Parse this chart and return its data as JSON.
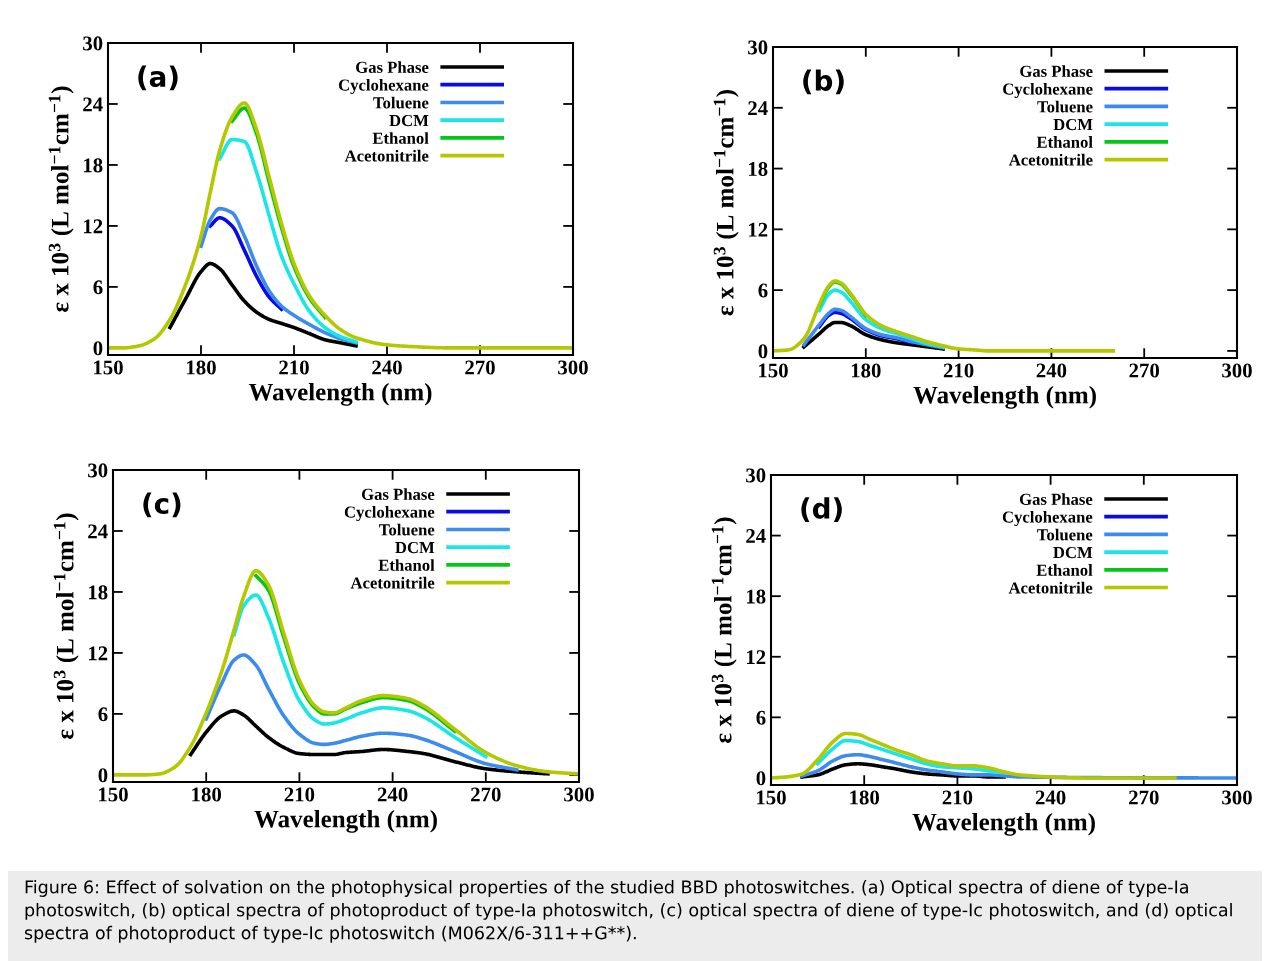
{
  "chart_data": [
    {
      "type": "line",
      "xlabel": "Wavelength (nm)",
      "ylabel": "ε x 10$^{3}$ (L mol$^{−1}$cm$^{−1}$)",
      "annotations": [
        "(a)"
      ],
      "xlim": [
        150,
        300
      ],
      "xticks": [
        150,
        180,
        210,
        240,
        270,
        300
      ],
      "ylim": [
        -0.7,
        30
      ],
      "yticks": [
        0,
        6,
        12,
        18,
        24,
        30
      ],
      "grid": false,
      "legend": "top right",
      "marker": "none",
      "line_style": "solid",
      "x": [
        150,
        155,
        160,
        165,
        170,
        175,
        180,
        183,
        186,
        190,
        194,
        198,
        202,
        206,
        210,
        215,
        220,
        225,
        230,
        240,
        250,
        260,
        300
      ],
      "series": [
        {
          "name": "Gas Phase",
          "color": "#000000",
          "values": [
            null,
            null,
            null,
            null,
            2.0,
            4.8,
            7.5,
            8.3,
            7.8,
            6.2,
            4.6,
            3.5,
            2.8,
            2.4,
            2.0,
            1.4,
            0.8,
            0.5,
            0.2,
            null,
            null,
            null,
            null
          ]
        },
        {
          "name": "Cyclohexane",
          "color": "#0a0ae6",
          "values": [
            null,
            null,
            null,
            null,
            null,
            null,
            null,
            12.0,
            12.8,
            12.0,
            9.6,
            7.0,
            5.0,
            3.8,
            null,
            null,
            null,
            null,
            null,
            null,
            null,
            null,
            null
          ]
        },
        {
          "name": "Toluene",
          "color": "#3c8cf0",
          "values": [
            null,
            null,
            null,
            null,
            null,
            null,
            10.0,
            12.6,
            13.7,
            13.3,
            11.0,
            8.0,
            5.6,
            4.1,
            3.2,
            2.3,
            1.5,
            0.9,
            0.5,
            null,
            null,
            null,
            null
          ]
        },
        {
          "name": "DCM",
          "color": "#19e6e6",
          "values": [
            null,
            null,
            null,
            null,
            null,
            null,
            null,
            null,
            18.6,
            20.5,
            20.3,
            17.2,
            13.0,
            9.0,
            6.3,
            3.6,
            2.0,
            1.1,
            0.6,
            null,
            null,
            null,
            null
          ]
        },
        {
          "name": "Ethanol",
          "color": "#00c814",
          "values": [
            null,
            null,
            null,
            null,
            null,
            null,
            null,
            null,
            null,
            22.3,
            23.6,
            21.0,
            16.3,
            11.8,
            8.0,
            4.9,
            3.0,
            null,
            null,
            null,
            null,
            null,
            null
          ]
        },
        {
          "name": "Acetonitrile",
          "color": "#b4c800",
          "values": [
            0,
            0,
            0.2,
            0.9,
            2.8,
            6.2,
            11.0,
            15.3,
            19.4,
            22.7,
            24.1,
            21.4,
            16.8,
            12.2,
            8.3,
            5.1,
            3.2,
            1.8,
            1.0,
            0.3,
            0.1,
            0,
            0
          ]
        }
      ]
    },
    {
      "type": "line",
      "xlabel": "Wavelength (nm)",
      "ylabel": "ε x 10$^{3}$ (L mol$^{−1}$cm$^{−1}$)",
      "annotations": [
        "(b)"
      ],
      "xlim": [
        150,
        300
      ],
      "xticks": [
        150,
        180,
        210,
        240,
        270,
        300
      ],
      "ylim": [
        -0.7,
        30
      ],
      "yticks": [
        0,
        6,
        12,
        18,
        24,
        30
      ],
      "grid": false,
      "legend": "top right",
      "marker": "none",
      "line_style": "solid",
      "x": [
        150,
        155,
        160,
        165,
        168,
        170,
        172,
        175,
        180,
        185,
        190,
        195,
        200,
        205,
        210,
        215,
        220,
        230,
        240,
        250,
        260
      ],
      "series": [
        {
          "name": "Gas Phase",
          "color": "#000000",
          "values": [
            null,
            null,
            0.4,
            1.7,
            2.5,
            2.8,
            2.8,
            2.5,
            1.6,
            1.1,
            0.8,
            0.6,
            0.4,
            0.2,
            null,
            null,
            null,
            null,
            null,
            null,
            null
          ]
        },
        {
          "name": "Cyclohexane",
          "color": "#0a0ae6",
          "values": [
            null,
            null,
            null,
            2.4,
            3.5,
            3.8,
            3.7,
            3.2,
            2.1,
            1.5,
            1.2,
            0.8,
            null,
            null,
            null,
            null,
            null,
            null,
            null,
            null,
            null
          ]
        },
        {
          "name": "Toluene",
          "color": "#3c8cf0",
          "values": [
            null,
            null,
            0.6,
            2.6,
            3.7,
            4.1,
            4.0,
            3.4,
            2.2,
            1.6,
            1.3,
            0.9,
            0.6,
            0.3,
            null,
            null,
            null,
            null,
            null,
            null,
            null
          ]
        },
        {
          "name": "DCM",
          "color": "#19e6e6",
          "values": [
            null,
            null,
            null,
            4.0,
            5.6,
            6.0,
            5.8,
            4.9,
            3.1,
            2.2,
            1.7,
            1.2,
            0.7,
            0.4,
            null,
            null,
            null,
            null,
            null,
            null,
            null
          ]
        },
        {
          "name": "Ethanol",
          "color": "#00c814",
          "values": [
            null,
            null,
            null,
            4.5,
            6.3,
            6.8,
            6.6,
            5.6,
            3.5,
            null,
            null,
            null,
            null,
            null,
            null,
            null,
            null,
            null,
            null,
            null,
            null
          ]
        },
        {
          "name": "Acetonitrile",
          "color": "#b4c800",
          "values": [
            0,
            0.1,
            1.2,
            4.6,
            6.4,
            6.9,
            6.7,
            5.7,
            3.6,
            2.5,
            1.9,
            1.4,
            0.9,
            0.5,
            0.2,
            0.1,
            0,
            0,
            0,
            0,
            0
          ]
        }
      ]
    },
    {
      "type": "line",
      "xlabel": "Wavelength (nm)",
      "ylabel": "ε x 10$^{3}$ (L mol$^{−1}$cm$^{−1}$)",
      "annotations": [
        "(c)"
      ],
      "xlim": [
        150,
        300
      ],
      "xticks": [
        150,
        180,
        210,
        240,
        270,
        300
      ],
      "ylim": [
        -0.7,
        30
      ],
      "yticks": [
        0,
        6,
        12,
        18,
        24,
        30
      ],
      "grid": false,
      "legend": "top right",
      "marker": "none",
      "line_style": "solid",
      "x": [
        150,
        160,
        165,
        170,
        175,
        180,
        185,
        189,
        192,
        196,
        200,
        205,
        210,
        215,
        218,
        221,
        225,
        230,
        237,
        245,
        250,
        260,
        270,
        280,
        290,
        300
      ],
      "series": [
        {
          "name": "Gas Phase",
          "color": "#000000",
          "values": [
            null,
            null,
            null,
            null,
            2.0,
            4.2,
            5.8,
            6.3,
            5.9,
            4.8,
            3.7,
            2.7,
            2.1,
            2.0,
            2.0,
            2.0,
            2.2,
            2.3,
            2.5,
            2.3,
            2.1,
            1.3,
            0.6,
            0.3,
            0.1,
            null
          ]
        },
        {
          "name": "Cyclohexane",
          "color": "#0a0ae6",
          "values": [
            null,
            null,
            null,
            null,
            null,
            null,
            null,
            null,
            null,
            null,
            null,
            null,
            null,
            null,
            null,
            null,
            null,
            null,
            null,
            null,
            null,
            null,
            null,
            null,
            null,
            null
          ]
        },
        {
          "name": "Toluene",
          "color": "#3c8cf0",
          "values": [
            null,
            null,
            null,
            null,
            null,
            5.5,
            9.0,
            11.3,
            11.8,
            10.8,
            8.5,
            5.8,
            4.0,
            3.1,
            3.0,
            3.1,
            3.4,
            3.8,
            4.1,
            3.9,
            3.5,
            2.3,
            1.1,
            0.5,
            null,
            null
          ]
        },
        {
          "name": "DCM",
          "color": "#19e6e6",
          "values": [
            null,
            null,
            null,
            null,
            null,
            null,
            null,
            13.8,
            16.6,
            17.7,
            15.5,
            11.0,
            7.3,
            5.4,
            5.0,
            5.1,
            5.5,
            6.1,
            6.6,
            6.3,
            5.7,
            3.7,
            1.8,
            null,
            null,
            null
          ]
        },
        {
          "name": "Ethanol",
          "color": "#00c814",
          "values": [
            null,
            null,
            null,
            null,
            null,
            null,
            null,
            null,
            null,
            19.6,
            18.2,
            13.5,
            9.0,
            6.6,
            6.0,
            6.0,
            6.5,
            7.1,
            7.6,
            7.3,
            6.6,
            4.3,
            null,
            null,
            null,
            null
          ]
        },
        {
          "name": "Acetonitrile",
          "color": "#b4c800",
          "values": [
            0,
            0,
            0.1,
            0.8,
            2.8,
            6.1,
            10.2,
            14.3,
            17.5,
            20.1,
            18.7,
            13.9,
            9.3,
            6.8,
            6.2,
            6.1,
            6.6,
            7.3,
            7.8,
            7.5,
            6.8,
            4.5,
            2.2,
            0.9,
            0.3,
            0.1
          ]
        }
      ]
    },
    {
      "type": "line",
      "xlabel": "Wavelength (nm)",
      "ylabel": "ε x 10$^{3}$ (L mol$^{−1}$cm$^{−1}$)",
      "annotations": [
        "(d)",
        "Figure 6: Effect of solvation on the photophysical properties of the studied BBD photoswitches. (a) Optical spectra of diene of type-Ia photoswitch, (b) optical spectra of photoproduct of type-Ia photoswitch, (c) optical spectra of diene of type-Ic photoswitch, and (d) optical spectra of photoproduct of type-Ic photoswitch (M062X/6-311++G**)."
      ],
      "xlim": [
        150,
        300
      ],
      "xticks": [
        150,
        180,
        210,
        240,
        270,
        300
      ],
      "ylim": [
        -0.7,
        30
      ],
      "yticks": [
        0,
        6,
        12,
        18,
        24,
        30
      ],
      "grid": false,
      "legend": "top right",
      "marker": "none",
      "line_style": "solid",
      "x": [
        150,
        155,
        160,
        165,
        170,
        174,
        178,
        182,
        186,
        190,
        195,
        200,
        205,
        210,
        215,
        220,
        225,
        230,
        240,
        250,
        260,
        270,
        280,
        290,
        300
      ],
      "series": [
        {
          "name": "Gas Phase",
          "color": "#000000",
          "values": [
            null,
            null,
            0.1,
            0.3,
            0.9,
            1.3,
            1.4,
            1.3,
            1.1,
            0.9,
            0.6,
            0.4,
            0.3,
            0.2,
            0.2,
            0.1,
            0.1,
            null,
            null,
            null,
            null,
            null,
            null,
            null,
            null
          ]
        },
        {
          "name": "Cyclohexane",
          "color": "#0a0ae6",
          "values": [
            null,
            null,
            null,
            null,
            null,
            null,
            null,
            null,
            null,
            null,
            null,
            null,
            null,
            null,
            null,
            null,
            null,
            null,
            null,
            null,
            null,
            null,
            null,
            null,
            null
          ]
        },
        {
          "name": "Toluene",
          "color": "#3c8cf0",
          "values": [
            null,
            null,
            0.2,
            0.7,
            1.7,
            2.2,
            2.3,
            2.1,
            1.8,
            1.5,
            1.1,
            0.8,
            0.6,
            0.4,
            0.3,
            0.3,
            0.2,
            0.1,
            null,
            null,
            null,
            null,
            null,
            0,
            0
          ]
        },
        {
          "name": "DCM",
          "color": "#19e6e6",
          "values": [
            null,
            null,
            null,
            1.4,
            2.9,
            3.7,
            3.6,
            3.2,
            2.8,
            2.4,
            1.9,
            1.4,
            1.1,
            1.0,
            0.9,
            0.7,
            0.5,
            null,
            null,
            null,
            null,
            null,
            null,
            null,
            null
          ]
        },
        {
          "name": "Ethanol",
          "color": "#00c814",
          "values": [
            null,
            null,
            null,
            null,
            null,
            null,
            null,
            null,
            null,
            null,
            null,
            null,
            null,
            null,
            null,
            null,
            null,
            null,
            null,
            null,
            null,
            null,
            null,
            null,
            null
          ]
        },
        {
          "name": "Acetonitrile",
          "color": "#b4c800",
          "values": [
            0,
            0.1,
            0.4,
            1.8,
            3.6,
            4.4,
            4.3,
            3.8,
            3.3,
            2.8,
            2.3,
            1.7,
            1.4,
            1.2,
            1.2,
            1.0,
            0.6,
            0.3,
            0.1,
            0,
            0,
            0,
            0,
            null,
            null
          ]
        }
      ]
    }
  ]
}
